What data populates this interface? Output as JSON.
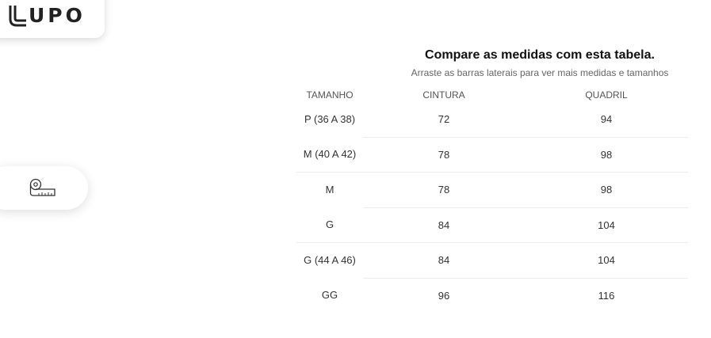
{
  "brand": {
    "logo_text": "UPO",
    "logo_alt": "LUPO"
  },
  "icons": {
    "logo_mark": "lupo-l-mark",
    "measure": "tape-measure-icon"
  },
  "table": {
    "title": "Compare as medidas com esta tabela.",
    "subtitle": "Arraste as barras laterais para ver mais medidas e tamanhos",
    "headers": {
      "size": "TAMANHO",
      "waist": "CINTURA",
      "hip": "QUADRIL"
    },
    "rows": [
      {
        "size": "P (36 A 38)",
        "waist": "72",
        "hip": "94"
      },
      {
        "size": "M (40 A 42)",
        "waist": "78",
        "hip": "98"
      },
      {
        "size": "M",
        "waist": "78",
        "hip": "98"
      },
      {
        "size": "G",
        "waist": "84",
        "hip": "104"
      },
      {
        "size": "G (44 A 46)",
        "waist": "84",
        "hip": "104"
      },
      {
        "size": "GG",
        "waist": "96",
        "hip": "116"
      }
    ]
  }
}
